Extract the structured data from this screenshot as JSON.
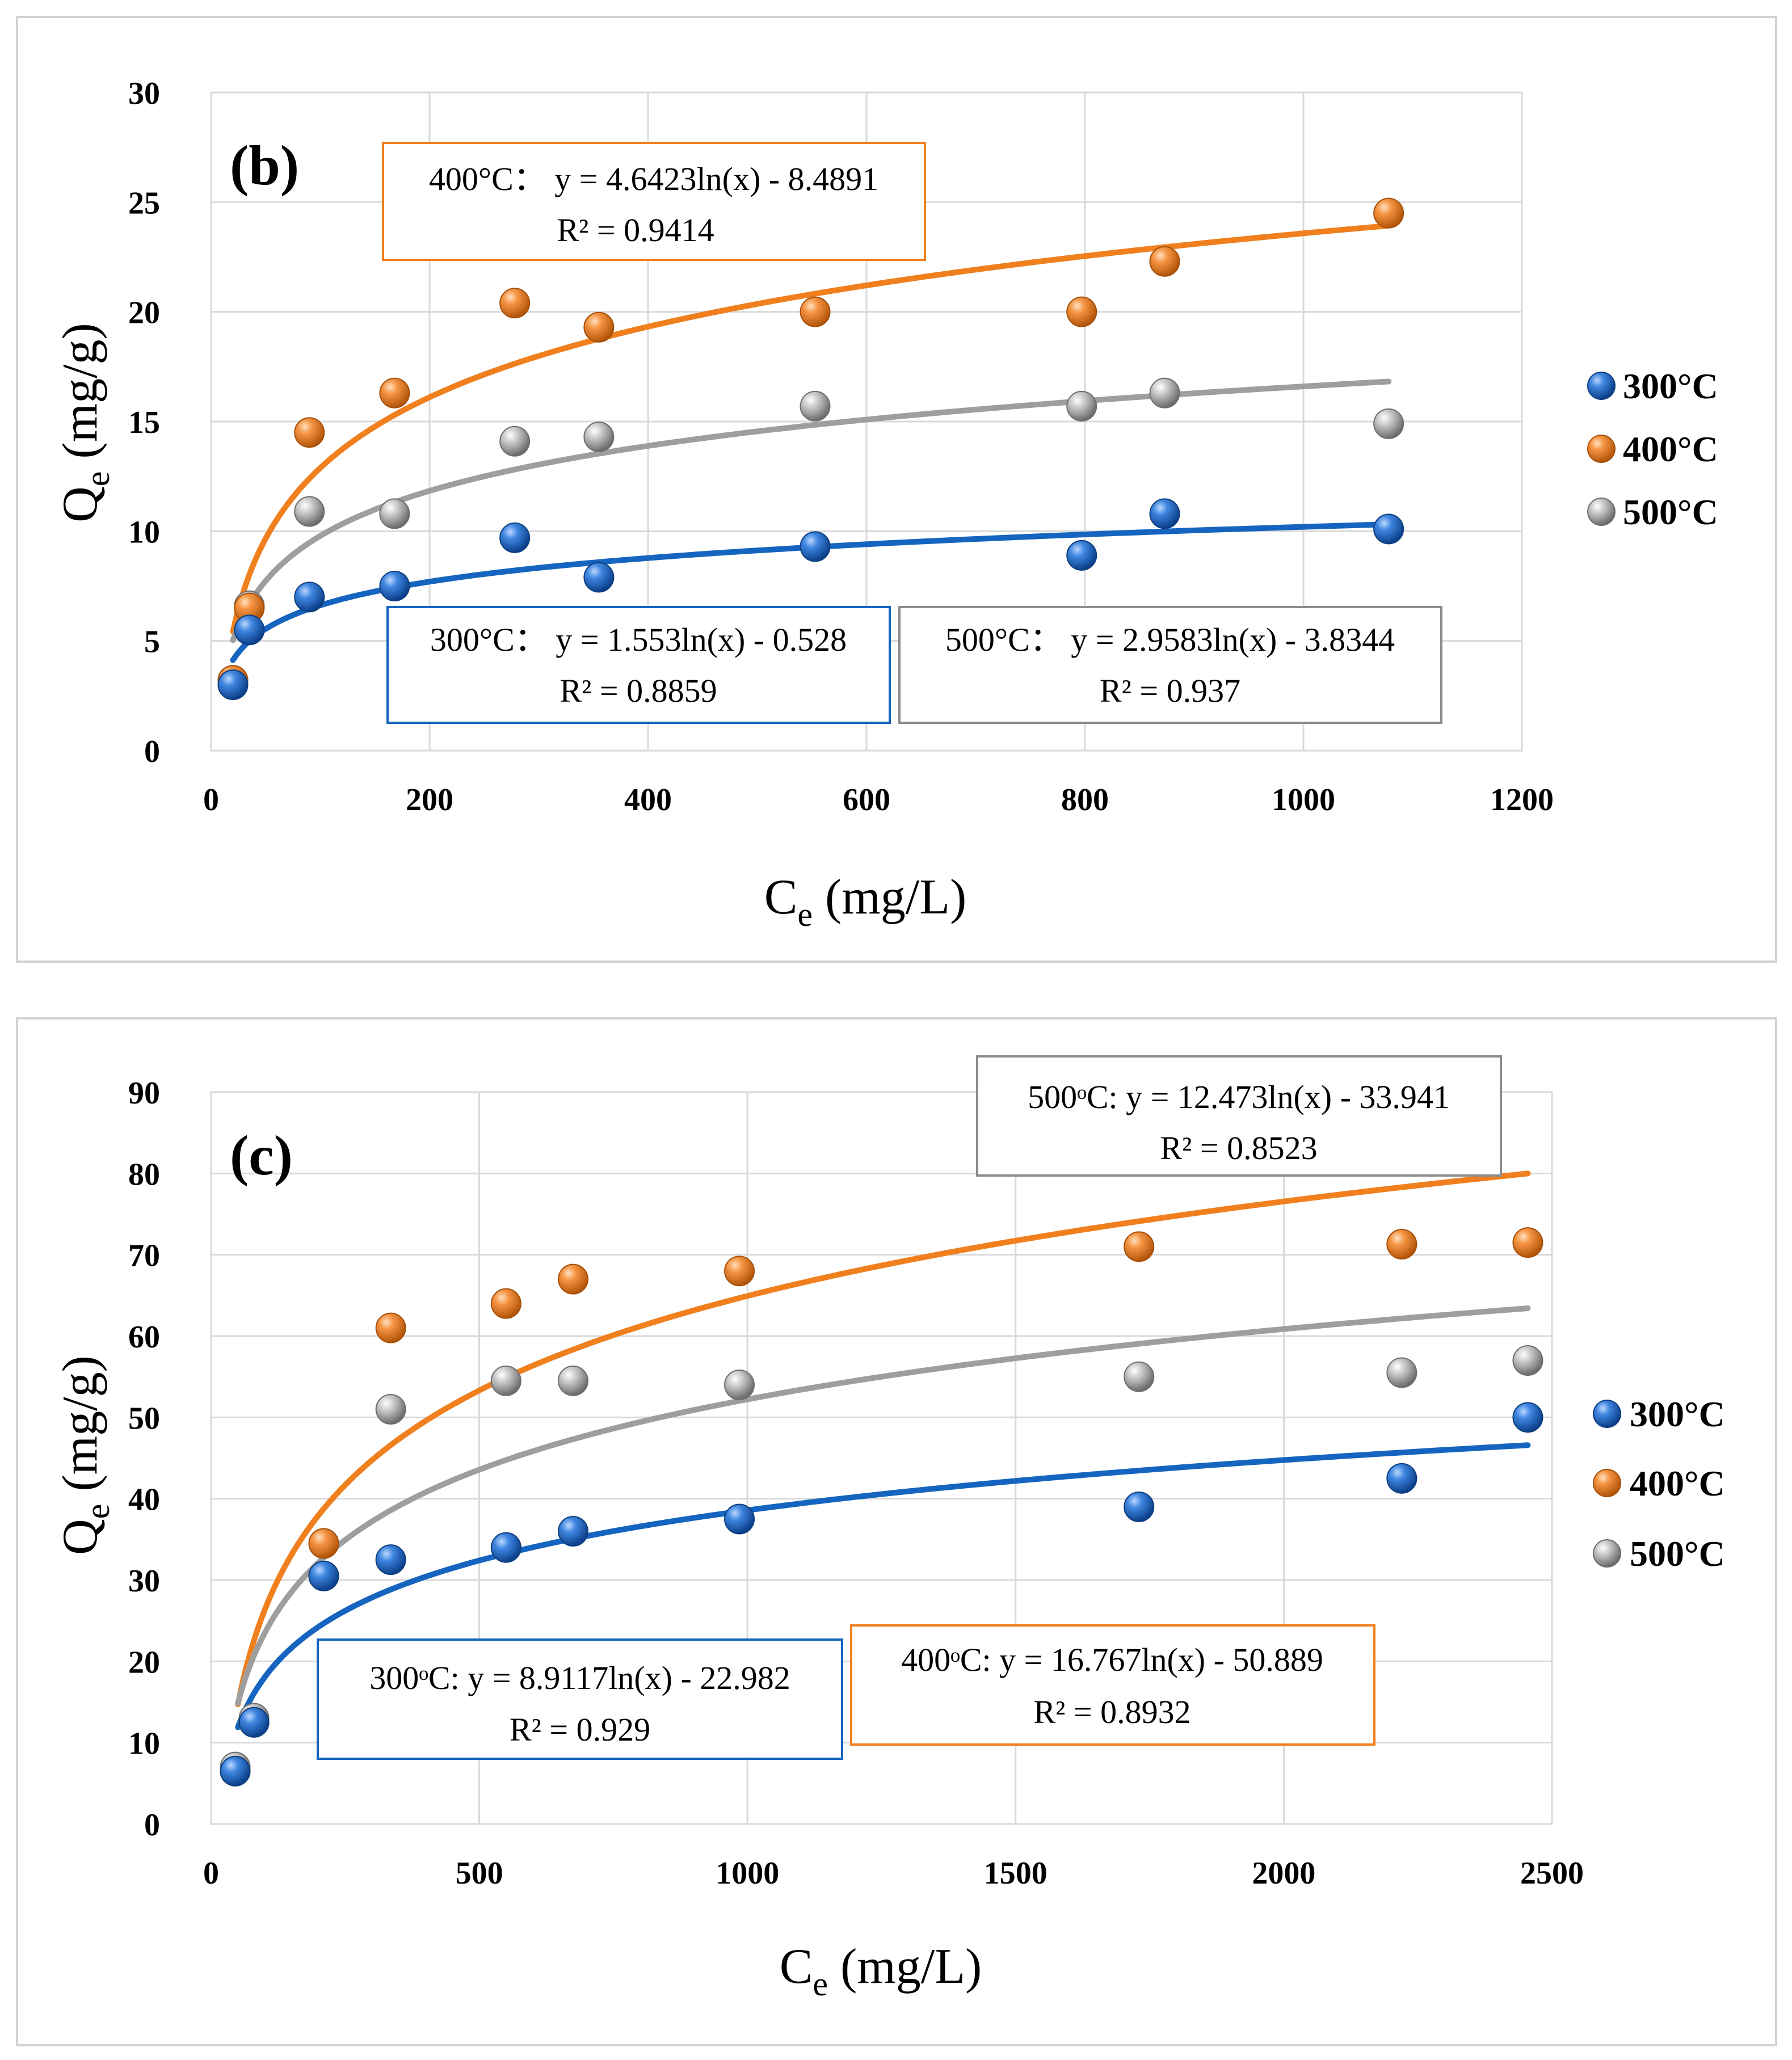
{
  "chart_data": [
    {
      "panel": "(b)",
      "type": "scatter",
      "xlabel": "C",
      "xlabel_sub": "e",
      "xlabel_unit": "(mg/L)",
      "ylabel": "Q",
      "ylabel_sub": "e",
      "ylabel_unit": "(mg/g)",
      "xlim": [
        0,
        1200
      ],
      "ylim": [
        0,
        30
      ],
      "xticks": [
        0,
        200,
        400,
        600,
        800,
        1000,
        1200
      ],
      "yticks": [
        0,
        5,
        10,
        15,
        20,
        25,
        30
      ],
      "grid": true,
      "legend_position": "right",
      "series": [
        {
          "name": "300°C",
          "color": "#1565C0",
          "x": [
            20,
            35,
            90,
            168,
            278,
            355,
            553,
            797,
            873,
            1078
          ],
          "y": [
            3.0,
            5.5,
            7.0,
            7.5,
            9.7,
            7.9,
            9.3,
            8.9,
            10.8,
            10.1
          ],
          "fit": {
            "a": 1.553,
            "b": -0.528,
            "x_start": 20,
            "x_end": 1078
          },
          "equation": "300°C： y = 1.553ln(x) - 0.528",
          "r2": "R² = 0.8859"
        },
        {
          "name": "400°C",
          "color": "#F07F1E",
          "x": [
            20,
            35,
            90,
            168,
            278,
            355,
            553,
            797,
            873,
            1078
          ],
          "y": [
            3.2,
            6.5,
            14.5,
            16.3,
            20.4,
            19.3,
            20.0,
            20.0,
            22.3,
            24.5
          ],
          "fit": {
            "a": 4.6423,
            "b": -8.4891,
            "x_start": 20,
            "x_end": 1078
          },
          "equation": "400°C： y = 4.6423ln(x) - 8.4891",
          "r2": "R² = 0.9414"
        },
        {
          "name": "500°C",
          "color": "#9E9E9E",
          "x": [
            20,
            35,
            90,
            168,
            278,
            355,
            553,
            797,
            873,
            1078
          ],
          "y": [
            3.2,
            6.6,
            10.9,
            10.8,
            14.1,
            14.3,
            15.7,
            15.7,
            16.3,
            14.9
          ],
          "fit": {
            "a": 2.9583,
            "b": -3.8344,
            "x_start": 20,
            "x_end": 1078
          },
          "equation": "500°C： y = 2.9583ln(x) - 3.8344",
          "r2": "R² = 0.937"
        }
      ]
    },
    {
      "panel": "(c)",
      "type": "scatter",
      "xlabel": "C",
      "xlabel_sub": "e",
      "xlabel_unit": "(mg/L)",
      "ylabel": "Q",
      "ylabel_sub": "e",
      "ylabel_unit": "(mg/g)",
      "xlim": [
        0,
        2500
      ],
      "ylim": [
        0,
        90
      ],
      "xticks": [
        0,
        500,
        1000,
        1500,
        2000,
        2500
      ],
      "yticks": [
        0,
        10,
        20,
        30,
        40,
        50,
        60,
        70,
        80,
        90
      ],
      "grid": true,
      "legend_position": "right",
      "series": [
        {
          "name": "300°C",
          "color": "#1565C0",
          "x": [
            45,
            80,
            210,
            335,
            550,
            675,
            985,
            1730,
            2220,
            2455
          ],
          "y": [
            6.5,
            12.5,
            30.5,
            32.5,
            34.0,
            36.0,
            37.5,
            39.0,
            42.5,
            50.0
          ],
          "fit": {
            "a": 8.9117,
            "b": -22.982,
            "x_start": 50,
            "x_end": 2455
          },
          "equation": "300ᵒC: y = 8.9117ln(x) - 22.982",
          "r2": "R² = 0.929"
        },
        {
          "name": "400°C",
          "color": "#F07F1E",
          "x": [
            45,
            80,
            210,
            335,
            550,
            675,
            985,
            1730,
            2220,
            2455
          ],
          "y": [
            6.5,
            12.5,
            34.5,
            61.0,
            64.0,
            67.0,
            68.0,
            71.0,
            71.3,
            71.5
          ],
          "fit": {
            "a": 16.767,
            "b": -50.889,
            "x_start": 50,
            "x_end": 2455
          },
          "equation": "400ᵒC: y = 16.767ln(x) - 50.889",
          "r2": "R² = 0.8932"
        },
        {
          "name": "500°C",
          "color": "#9E9E9E",
          "x": [
            45,
            80,
            210,
            335,
            550,
            675,
            985,
            1730,
            2220,
            2455
          ],
          "y": [
            7.0,
            13.0,
            30.5,
            51.0,
            54.5,
            54.5,
            54.0,
            55.0,
            55.5,
            57.0
          ],
          "fit": {
            "a": 12.473,
            "b": -33.941,
            "x_start": 50,
            "x_end": 2455
          },
          "equation": "500ᵒC: y = 12.473ln(x) - 33.941",
          "r2": "R² = 0.8523"
        }
      ]
    }
  ]
}
